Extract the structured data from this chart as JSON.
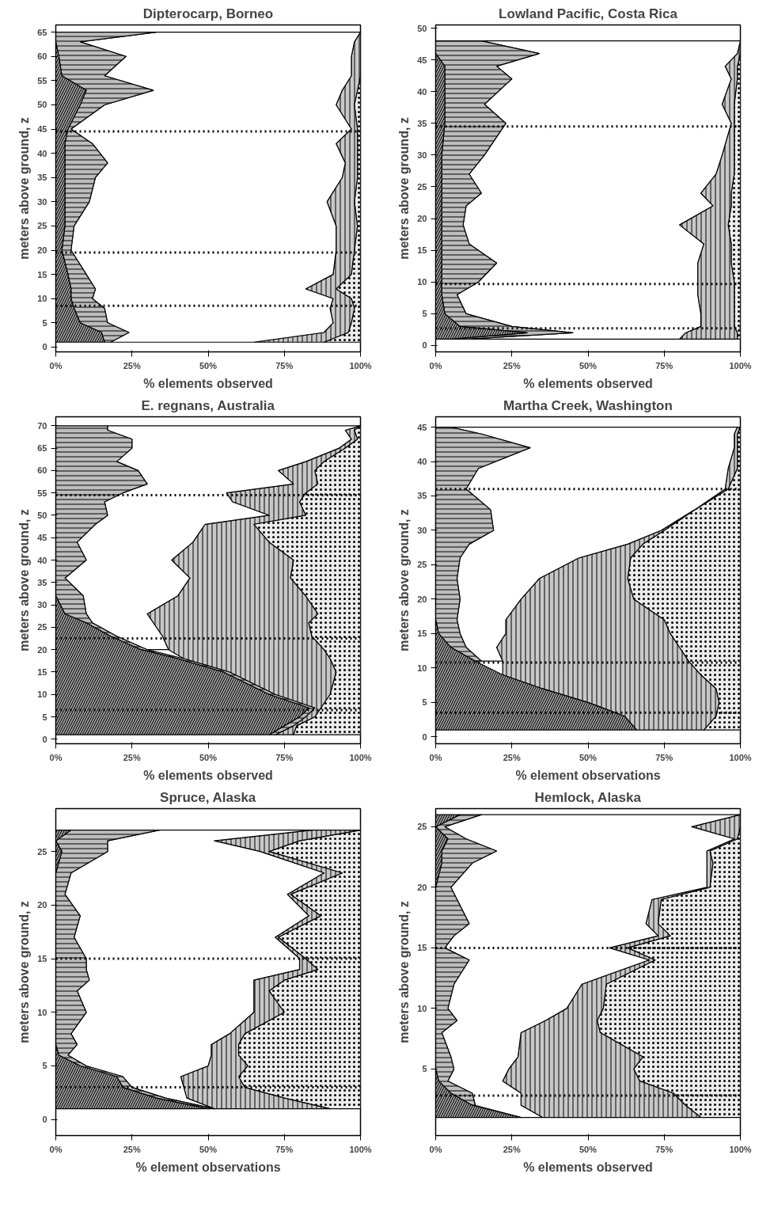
{
  "chart_data": [
    {
      "type": "area",
      "orientation": "horizontal",
      "stacked": true,
      "title": "Dipterocarp, Borneo",
      "xlabel": "% elements observed",
      "ylabel": "meters above ground, z",
      "xlim": [
        0,
        100
      ],
      "xticks": [
        {
          "value": 0,
          "label": "0%"
        },
        {
          "value": 25,
          "label": "25%"
        },
        {
          "value": 50,
          "label": "50%"
        },
        {
          "value": 75,
          "label": "75%"
        },
        {
          "value": 100,
          "label": "100%"
        }
      ],
      "ylim": [
        -1,
        66.5
      ],
      "yticks": [
        0,
        5,
        10,
        15,
        20,
        25,
        30,
        35,
        40,
        45,
        50,
        55,
        60,
        65
      ],
      "grid": false,
      "line_style": "solid",
      "x": [
        1,
        3,
        5,
        8,
        10,
        12,
        15,
        20,
        25,
        30,
        35,
        38,
        42,
        45,
        50,
        53,
        56,
        60,
        63,
        65
      ],
      "series": [
        {
          "color": "#9a9a9a",
          "values": [
            16,
            15,
            8,
            6,
            5,
            5,
            4,
            2,
            3,
            3,
            3,
            3,
            3,
            4,
            8,
            10,
            2,
            1,
            0,
            0
          ]
        },
        {
          "color": "#bdbdbd",
          "values": [
            2,
            9,
            9,
            10,
            7,
            8,
            6,
            3,
            3,
            8,
            10,
            14,
            9,
            1,
            8,
            22,
            14,
            22,
            8,
            33
          ]
        },
        {
          "color": "#ffffff",
          "values": [
            47,
            64,
            74,
            74,
            79,
            69,
            81,
            87,
            86,
            78,
            81,
            78,
            80,
            92,
            76,
            62,
            81,
            74,
            90,
            67
          ]
        },
        {
          "color": "#c8c8c8",
          "values": [
            23,
            8,
            6,
            8,
            6,
            10,
            6,
            6,
            7,
            9,
            5,
            4,
            7,
            2,
            6,
            5,
            3,
            3,
            2,
            0
          ]
        },
        {
          "color": "#ececec",
          "values": [
            12,
            4,
            3,
            2,
            3,
            8,
            3,
            2,
            1,
            2,
            1,
            1,
            1,
            1,
            2,
            1,
            0,
            0,
            0,
            0
          ]
        }
      ],
      "ref_lines": [
        {
          "axis": "y",
          "value": 44.5,
          "line_style": "dotted",
          "color": "#000000"
        },
        {
          "axis": "y",
          "value": 19.5,
          "line_style": "dotted",
          "color": "#000000"
        },
        {
          "axis": "y",
          "value": 8.5,
          "line_style": "dotted",
          "color": "#000000"
        }
      ]
    },
    {
      "type": "area",
      "orientation": "horizontal",
      "stacked": true,
      "title": "Lowland Pacific, Costa Rica",
      "xlabel": "% elements observed",
      "ylabel": "meters above ground, z",
      "xlim": [
        0,
        100
      ],
      "xticks": [
        {
          "value": 0,
          "label": "0%"
        },
        {
          "value": 25,
          "label": "25%"
        },
        {
          "value": 50,
          "label": "50%"
        },
        {
          "value": 75,
          "label": "75%"
        },
        {
          "value": 100,
          "label": "100%"
        }
      ],
      "ylim": [
        -1,
        50.5
      ],
      "yticks": [
        0,
        5,
        10,
        15,
        20,
        25,
        30,
        35,
        40,
        45,
        50
      ],
      "grid": false,
      "line_style": "solid",
      "x": [
        1,
        2,
        3,
        5,
        8,
        10,
        13,
        16,
        19,
        22,
        24,
        27,
        30,
        35,
        38,
        42,
        44,
        46,
        48
      ],
      "series": [
        {
          "color": "#9a9a9a",
          "values": [
            5,
            30,
            8,
            3,
            2,
            2,
            2,
            2,
            2,
            2,
            2,
            2,
            2,
            3,
            3,
            3,
            3,
            0,
            0
          ]
        },
        {
          "color": "#bdbdbd",
          "values": [
            5,
            15,
            17,
            7,
            5,
            12,
            18,
            9,
            7,
            8,
            13,
            9,
            14,
            20,
            13,
            22,
            17,
            34,
            15
          ]
        },
        {
          "color": "#ffffff",
          "values": [
            70,
            37,
            62,
            77,
            79,
            72,
            66,
            77,
            71,
            81,
            72,
            81,
            78,
            74,
            78,
            72,
            75,
            65,
            85
          ]
        },
        {
          "color": "#c8c8c8",
          "values": [
            19,
            17,
            11,
            11,
            12,
            12,
            11,
            9,
            16,
            6,
            10,
            6,
            4,
            1,
            4,
            2,
            4,
            1,
            0
          ]
        },
        {
          "color": "#ececec",
          "values": [
            1,
            1,
            2,
            2,
            2,
            2,
            3,
            3,
            4,
            3,
            3,
            2,
            2,
            2,
            2,
            1,
            1,
            0,
            0
          ]
        }
      ],
      "ref_lines": [
        {
          "axis": "y",
          "value": 34.5,
          "line_style": "dotted",
          "color": "#000000"
        },
        {
          "axis": "y",
          "value": 9.7,
          "line_style": "dotted",
          "color": "#000000"
        },
        {
          "axis": "y",
          "value": 2.7,
          "line_style": "dotted",
          "color": "#000000"
        }
      ]
    },
    {
      "type": "area",
      "orientation": "horizontal",
      "stacked": true,
      "title": "E. regnans, Australia",
      "xlabel": "% elements observed",
      "ylabel": "meters above ground, z",
      "xlim": [
        0,
        100
      ],
      "xticks": [
        {
          "value": 0,
          "label": "0%"
        },
        {
          "value": 25,
          "label": "25%"
        },
        {
          "value": 50,
          "label": "50%"
        },
        {
          "value": 75,
          "label": "75%"
        },
        {
          "value": 100,
          "label": "100%"
        }
      ],
      "ylim": [
        -1,
        72
      ],
      "yticks": [
        0,
        5,
        10,
        15,
        20,
        25,
        30,
        35,
        40,
        45,
        50,
        55,
        60,
        65,
        70
      ],
      "grid": false,
      "line_style": "solid",
      "x": [
        1,
        3,
        5,
        7,
        10,
        15,
        18,
        20,
        23,
        26,
        28,
        32,
        36,
        40,
        44,
        48,
        50,
        53,
        55,
        57,
        60,
        62,
        65,
        67,
        69,
        70
      ],
      "series": [
        {
          "color": "#9a9a9a",
          "values": [
            70,
            75,
            80,
            83,
            70,
            55,
            40,
            28,
            18,
            10,
            3,
            0,
            0,
            0,
            0,
            0,
            0,
            0,
            0,
            0,
            0,
            0,
            0,
            0,
            0,
            0
          ]
        },
        {
          "color": "#bdbdbd",
          "values": [
            2,
            3,
            2,
            2,
            2,
            2,
            2,
            2,
            2,
            2,
            7,
            9,
            3,
            10,
            7,
            13,
            17,
            16,
            22,
            30,
            27,
            20,
            25,
            25,
            17,
            17
          ]
        },
        {
          "color": "#ffffff",
          "values": [
            null,
            null,
            null,
            null,
            null,
            null,
            null,
            7,
            15,
            20,
            20,
            31,
            41,
            28,
            38,
            36,
            53,
            42,
            34,
            48,
            46,
            62,
            68,
            72,
            78,
            83
          ]
        },
        {
          "color": "#c8c8c8",
          "values": [
            6,
            1,
            3,
            2,
            18,
            35,
            48,
            51,
            49,
            51,
            56,
            42,
            33,
            40,
            25,
            16,
            12,
            22,
            26,
            8,
            12,
            6,
            2,
            2,
            3,
            0
          ]
        },
        {
          "color": "#ececec",
          "values": [
            22,
            21,
            15,
            13,
            10,
            8,
            10,
            12,
            16,
            17,
            14,
            18,
            23,
            22,
            30,
            35,
            18,
            20,
            18,
            14,
            15,
            12,
            5,
            1,
            2,
            0
          ]
        }
      ],
      "ref_lines": [
        {
          "axis": "y",
          "value": 54.5,
          "line_style": "dotted",
          "color": "#000000"
        },
        {
          "axis": "y",
          "value": 22.5,
          "line_style": "dotted",
          "color": "#000000"
        },
        {
          "axis": "y",
          "value": 6.5,
          "line_style": "dotted",
          "color": "#000000"
        }
      ]
    },
    {
      "type": "area",
      "orientation": "horizontal",
      "stacked": true,
      "title": "Martha Creek, Washington",
      "xlabel": "% element observations",
      "ylabel": "meters above ground, z",
      "xlim": [
        0,
        100
      ],
      "xticks": [
        {
          "value": 0,
          "label": "0%"
        },
        {
          "value": 25,
          "label": "25%"
        },
        {
          "value": 50,
          "label": "50%"
        },
        {
          "value": 75,
          "label": "75%"
        },
        {
          "value": 100,
          "label": "100%"
        }
      ],
      "ylim": [
        -1,
        46.5
      ],
      "yticks": [
        0,
        5,
        10,
        15,
        20,
        25,
        30,
        35,
        40,
        45
      ],
      "grid": false,
      "line_style": "solid",
      "x": [
        1,
        3,
        5,
        7,
        9,
        11,
        13,
        15,
        17,
        20,
        23,
        26,
        28,
        30,
        33,
        36,
        39,
        42,
        44,
        45
      ],
      "series": [
        {
          "color": "#9a9a9a",
          "values": [
            66,
            62,
            50,
            35,
            22,
            13,
            5,
            1,
            0,
            0,
            0,
            0,
            0,
            0,
            0,
            0,
            0,
            0,
            0,
            0
          ]
        },
        {
          "color": "#bdbdbd",
          "values": [
            null,
            null,
            null,
            null,
            null,
            2,
            5,
            7,
            7,
            8,
            7,
            8,
            11,
            19,
            18,
            10,
            14,
            31,
            15,
            5
          ]
        },
        {
          "color": "#ffffff",
          "values": [
            null,
            null,
            null,
            null,
            null,
            7,
            10,
            15,
            16,
            20,
            27,
            39,
            52,
            55,
            67,
            85,
            82,
            67,
            83,
            94
          ]
        },
        {
          "color": "#c8c8c8",
          "values": [
            22,
            30,
            43,
            57,
            65,
            61,
            60,
            54,
            52,
            37,
            29,
            17,
            5,
            1,
            0,
            1,
            3,
            1,
            1,
            1
          ]
        },
        {
          "color": "#ececec",
          "values": [
            12,
            8,
            7,
            8,
            13,
            17,
            20,
            23,
            25,
            35,
            37,
            36,
            32,
            25,
            15,
            4,
            1,
            1,
            1,
            0
          ]
        }
      ],
      "ref_lines": [
        {
          "axis": "y",
          "value": 36,
          "line_style": "dotted",
          "color": "#000000"
        },
        {
          "axis": "y",
          "value": 10.8,
          "line_style": "dotted",
          "color": "#000000"
        },
        {
          "axis": "y",
          "value": 3.5,
          "line_style": "dotted",
          "color": "#000000"
        }
      ]
    },
    {
      "type": "area",
      "orientation": "horizontal",
      "stacked": true,
      "title": "Spruce, Alaska",
      "xlabel": "% element observations",
      "ylabel": "meters above ground, z",
      "xlim": [
        0,
        100
      ],
      "xticks": [
        {
          "value": 0,
          "label": "0%"
        },
        {
          "value": 25,
          "label": "25%"
        },
        {
          "value": 50,
          "label": "50%"
        },
        {
          "value": 75,
          "label": "75%"
        },
        {
          "value": 100,
          "label": "100%"
        }
      ],
      "ylim": [
        -1.5,
        29
      ],
      "yticks": [
        0,
        5,
        10,
        15,
        20,
        25
      ],
      "grid": false,
      "line_style": "solid",
      "x": [
        1,
        2,
        3,
        4,
        5,
        6,
        7,
        8,
        10,
        12,
        13,
        14,
        15,
        17,
        19,
        21,
        23,
        25,
        26,
        27
      ],
      "series": [
        {
          "color": "#9a9a9a",
          "values": [
            50,
            33,
            22,
            20,
            8,
            1,
            0,
            0,
            0,
            0,
            0,
            0,
            0,
            0,
            0,
            0,
            0,
            2,
            0,
            5
          ]
        },
        {
          "color": "#bdbdbd",
          "values": [
            2,
            3,
            3,
            2,
            2,
            3,
            7,
            5,
            10,
            7,
            11,
            10,
            10,
            6,
            8,
            3,
            5,
            15,
            17,
            29
          ]
        },
        {
          "color": "#ffffff",
          "values": [
            0,
            7,
            17,
            19,
            40,
            47,
            44,
            52,
            55,
            58,
            54,
            70,
            70,
            66,
            75,
            73,
            83,
            50,
            35,
            50
          ]
        },
        {
          "color": "#c8c8c8",
          "values": [
            38,
            32,
            20,
            19,
            13,
            9,
            9,
            5,
            10,
            5,
            10,
            6,
            2,
            1,
            4,
            1,
            6,
            3,
            28,
            16
          ]
        },
        {
          "color": "#ececec",
          "values": [
            10,
            25,
            38,
            40,
            37,
            40,
            40,
            38,
            25,
            30,
            25,
            14,
            18,
            27,
            13,
            23,
            6,
            30,
            20,
            0
          ]
        }
      ],
      "ref_lines": [
        {
          "axis": "y",
          "value": 15,
          "line_style": "dotted",
          "color": "#000000"
        },
        {
          "axis": "y",
          "value": 3,
          "line_style": "dotted",
          "color": "#000000"
        }
      ]
    },
    {
      "type": "area",
      "orientation": "horizontal",
      "stacked": true,
      "title": "Hemlock, Alaska",
      "xlabel": "% elements observed",
      "ylabel": "meters above ground, z",
      "xlim": [
        0,
        100
      ],
      "xticks": [
        {
          "value": 0,
          "label": "0%"
        },
        {
          "value": 25,
          "label": "25%"
        },
        {
          "value": 50,
          "label": "50%"
        },
        {
          "value": 75,
          "label": "75%"
        },
        {
          "value": 100,
          "label": "100%"
        }
      ],
      "ylim": [
        -0.5,
        26.5
      ],
      "yticks": [
        5,
        10,
        15,
        20,
        25
      ],
      "grid": false,
      "line_style": "solid",
      "x": [
        1,
        2,
        3,
        4,
        5,
        6,
        8,
        9,
        10,
        12,
        14,
        15,
        16,
        17,
        19,
        20,
        22,
        23,
        24,
        25,
        26
      ],
      "series": [
        {
          "color": "#9a9a9a",
          "values": [
            28,
            12,
            5,
            1,
            0,
            0,
            0,
            0,
            0,
            0,
            0,
            0,
            0,
            0,
            0,
            0,
            2,
            2,
            4,
            0,
            8
          ]
        },
        {
          "color": "#bdbdbd",
          "values": [
            null,
            1,
            7,
            3,
            6,
            5,
            2,
            7,
            4,
            6,
            11,
            3,
            6,
            11,
            7,
            5,
            10,
            18,
            6,
            3,
            7
          ]
        },
        {
          "color": "#ffffff",
          "values": [
            7,
            15,
            16,
            18,
            18,
            22,
            26,
            29,
            39,
            42,
            59,
            54,
            67,
            58,
            64,
            84,
            77,
            69,
            88,
            81,
            85
          ]
        },
        {
          "color": "#c8c8c8",
          "values": [
            52,
            54,
            50,
            45,
            41,
            41,
            26,
            17,
            12,
            8,
            2,
            6,
            4,
            4,
            3,
            1,
            2,
            1,
            1,
            16,
            0
          ]
        },
        {
          "color": "#ececec",
          "values": [
            13,
            18,
            22,
            33,
            35,
            32,
            46,
            47,
            45,
            44,
            28,
            37,
            23,
            27,
            26,
            10,
            9,
            10,
            1,
            0,
            0
          ]
        }
      ],
      "ref_lines": [
        {
          "axis": "y",
          "value": 15,
          "line_style": "dotted",
          "color": "#000000"
        },
        {
          "axis": "y",
          "value": 2.8,
          "line_style": "dotted",
          "color": "#000000"
        }
      ]
    }
  ]
}
